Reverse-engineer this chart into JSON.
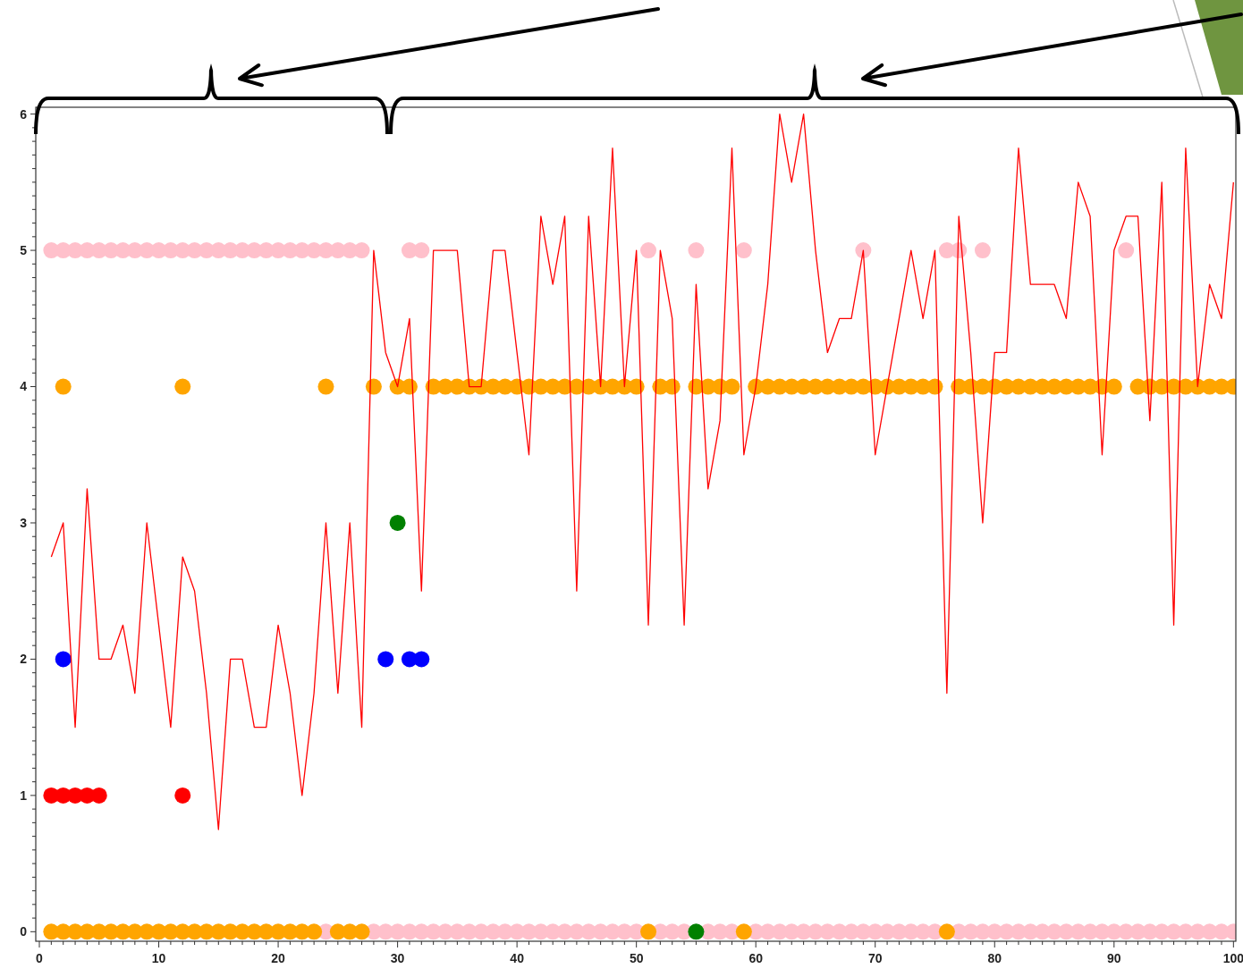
{
  "chart_data": {
    "type": "line",
    "xlim": [
      -0.3,
      100.2
    ],
    "ylim": [
      -0.07,
      6.05
    ],
    "xticks": [
      0,
      {
        "value": 1,
        "label": null
      },
      {
        "value": 2,
        "label": null
      },
      {
        "value": 3,
        "label": null
      },
      {
        "value": 4,
        "label": null
      },
      {
        "value": 5,
        "label": null
      },
      {
        "value": 6,
        "label": null
      },
      {
        "value": 7,
        "label": null
      },
      {
        "value": 8,
        "label": null
      },
      {
        "value": 9,
        "label": null
      },
      10,
      {
        "value": 11,
        "label": null
      },
      {
        "value": 12,
        "label": null
      },
      {
        "value": 13,
        "label": null
      },
      {
        "value": 14,
        "label": null
      },
      {
        "value": 15,
        "label": null
      },
      {
        "value": 16,
        "label": null
      },
      {
        "value": 17,
        "label": null
      },
      {
        "value": 18,
        "label": null
      },
      {
        "value": 19,
        "label": null
      },
      20,
      {
        "value": 21,
        "label": null
      },
      {
        "value": 22,
        "label": null
      },
      {
        "value": 23,
        "label": null
      },
      {
        "value": 24,
        "label": null
      },
      {
        "value": 25,
        "label": null
      },
      {
        "value": 26,
        "label": null
      },
      {
        "value": 27,
        "label": null
      },
      {
        "value": 28,
        "label": null
      },
      {
        "value": 29,
        "label": null
      },
      30,
      {
        "value": 31,
        "label": null
      },
      {
        "value": 32,
        "label": null
      },
      {
        "value": 33,
        "label": null
      },
      {
        "value": 34,
        "label": null
      },
      {
        "value": 35,
        "label": null
      },
      {
        "value": 36,
        "label": null
      },
      {
        "value": 37,
        "label": null
      },
      {
        "value": 38,
        "label": null
      },
      {
        "value": 39,
        "label": null
      },
      40,
      {
        "value": 41,
        "label": null
      },
      {
        "value": 42,
        "label": null
      },
      {
        "value": 43,
        "label": null
      },
      {
        "value": 44,
        "label": null
      },
      {
        "value": 45,
        "label": null
      },
      {
        "value": 46,
        "label": null
      },
      {
        "value": 47,
        "label": null
      },
      {
        "value": 48,
        "label": null
      },
      {
        "value": 49,
        "label": null
      },
      50,
      {
        "value": 51,
        "label": null
      },
      {
        "value": 52,
        "label": null
      },
      {
        "value": 53,
        "label": null
      },
      {
        "value": 54,
        "label": null
      },
      {
        "value": 55,
        "label": null
      },
      {
        "value": 56,
        "label": null
      },
      {
        "value": 57,
        "label": null
      },
      {
        "value": 58,
        "label": null
      },
      {
        "value": 59,
        "label": null
      },
      60,
      {
        "value": 61,
        "label": null
      },
      {
        "value": 62,
        "label": null
      },
      {
        "value": 63,
        "label": null
      },
      {
        "value": 64,
        "label": null
      },
      {
        "value": 65,
        "label": null
      },
      {
        "value": 66,
        "label": null
      },
      {
        "value": 67,
        "label": null
      },
      {
        "value": 68,
        "label": null
      },
      {
        "value": 69,
        "label": null
      },
      70,
      {
        "value": 71,
        "label": null
      },
      {
        "value": 72,
        "label": null
      },
      {
        "value": 73,
        "label": null
      },
      {
        "value": 74,
        "label": null
      },
      {
        "value": 75,
        "label": null
      },
      {
        "value": 76,
        "label": null
      },
      {
        "value": 77,
        "label": null
      },
      {
        "value": 78,
        "label": null
      },
      {
        "value": 79,
        "label": null
      },
      80,
      {
        "value": 81,
        "label": null
      },
      {
        "value": 82,
        "label": null
      },
      {
        "value": 83,
        "label": null
      },
      {
        "value": 84,
        "label": null
      },
      {
        "value": 85,
        "label": null
      },
      {
        "value": 86,
        "label": null
      },
      {
        "value": 87,
        "label": null
      },
      {
        "value": 88,
        "label": null
      },
      {
        "value": 89,
        "label": null
      },
      90,
      {
        "value": 91,
        "label": null
      },
      {
        "value": 92,
        "label": null
      },
      {
        "value": 93,
        "label": null
      },
      {
        "value": 94,
        "label": null
      },
      {
        "value": 95,
        "label": null
      },
      {
        "value": 96,
        "label": null
      },
      {
        "value": 97,
        "label": null
      },
      {
        "value": 98,
        "label": null
      },
      {
        "value": 99,
        "label": null
      },
      100
    ],
    "yticks": [
      0,
      {
        "value": 0.1,
        "label": null
      },
      {
        "value": 0.2,
        "label": null
      },
      {
        "value": 0.3,
        "label": null
      },
      {
        "value": 0.4,
        "label": null
      },
      {
        "value": 0.5,
        "label": null
      },
      {
        "value": 0.6,
        "label": null
      },
      {
        "value": 0.7,
        "label": null
      },
      {
        "value": 0.8,
        "label": null
      },
      {
        "value": 0.9,
        "label": null
      },
      1,
      {
        "value": 1.1,
        "label": null
      },
      {
        "value": 1.2,
        "label": null
      },
      {
        "value": 1.3,
        "label": null
      },
      {
        "value": 1.4,
        "label": null
      },
      {
        "value": 1.5,
        "label": null
      },
      {
        "value": 1.6,
        "label": null
      },
      {
        "value": 1.7,
        "label": null
      },
      {
        "value": 1.8,
        "label": null
      },
      {
        "value": 1.9,
        "label": null
      },
      2,
      {
        "value": 2.1,
        "label": null
      },
      {
        "value": 2.2,
        "label": null
      },
      {
        "value": 2.3,
        "label": null
      },
      {
        "value": 2.4,
        "label": null
      },
      {
        "value": 2.5,
        "label": null
      },
      {
        "value": 2.6,
        "label": null
      },
      {
        "value": 2.7,
        "label": null
      },
      {
        "value": 2.8,
        "label": null
      },
      {
        "value": 2.9,
        "label": null
      },
      3,
      {
        "value": 3.1,
        "label": null
      },
      {
        "value": 3.2,
        "label": null
      },
      {
        "value": 3.3,
        "label": null
      },
      {
        "value": 3.4,
        "label": null
      },
      {
        "value": 3.5,
        "label": null
      },
      {
        "value": 3.6,
        "label": null
      },
      {
        "value": 3.7,
        "label": null
      },
      {
        "value": 3.8,
        "label": null
      },
      {
        "value": 3.9,
        "label": null
      },
      4,
      {
        "value": 4.1,
        "label": null
      },
      {
        "value": 4.2,
        "label": null
      },
      {
        "value": 4.3,
        "label": null
      },
      {
        "value": 4.4,
        "label": null
      },
      {
        "value": 4.5,
        "label": null
      },
      {
        "value": 4.6,
        "label": null
      },
      {
        "value": 4.7,
        "label": null
      },
      {
        "value": 4.8,
        "label": null
      },
      {
        "value": 4.9,
        "label": null
      },
      5,
      {
        "value": 5.1,
        "label": null
      },
      {
        "value": 5.2,
        "label": null
      },
      {
        "value": 5.3,
        "label": null
      },
      {
        "value": 5.4,
        "label": null
      },
      {
        "value": 5.5,
        "label": null
      },
      {
        "value": 5.6,
        "label": null
      },
      {
        "value": 5.7,
        "label": null
      },
      {
        "value": 5.8,
        "label": null
      },
      {
        "value": 5.9,
        "label": null
      },
      6
    ],
    "series": [
      {
        "type": "scatter",
        "marker": "circle",
        "color": "#ffc0cb",
        "x": [
          1,
          2,
          3,
          4,
          5,
          6,
          7,
          8,
          9,
          10,
          11,
          12,
          13,
          14,
          15,
          16,
          17,
          18,
          19,
          20,
          21,
          22,
          23,
          24,
          25,
          26,
          27,
          31,
          32,
          51,
          55,
          59,
          69,
          76,
          77,
          79,
          91
        ],
        "values": [
          5,
          5,
          5,
          5,
          5,
          5,
          5,
          5,
          5,
          5,
          5,
          5,
          5,
          5,
          5,
          5,
          5,
          5,
          5,
          5,
          5,
          5,
          5,
          5,
          5,
          5,
          5,
          5,
          5,
          5,
          5,
          5,
          5,
          5,
          5,
          5,
          5
        ]
      },
      {
        "type": "scatter",
        "marker": "circle",
        "color": "#ffc0cb",
        "x": [
          24,
          28,
          29,
          30,
          31,
          32,
          33,
          34,
          35,
          36,
          37,
          38,
          39,
          40,
          41,
          42,
          43,
          44,
          45,
          46,
          47,
          48,
          49,
          50,
          52,
          53,
          54,
          56,
          57,
          58,
          60,
          61,
          62,
          63,
          64,
          65,
          66,
          67,
          68,
          69,
          70,
          71,
          72,
          73,
          74,
          75,
          77,
          78,
          79,
          80,
          81,
          82,
          83,
          84,
          85,
          86,
          87,
          88,
          89,
          90,
          91,
          92,
          93,
          94,
          95,
          96,
          97,
          98,
          99,
          100
        ],
        "values": [
          0,
          0,
          0,
          0,
          0,
          0,
          0,
          0,
          0,
          0,
          0,
          0,
          0,
          0,
          0,
          0,
          0,
          0,
          0,
          0,
          0,
          0,
          0,
          0,
          0,
          0,
          0,
          0,
          0,
          0,
          0,
          0,
          0,
          0,
          0,
          0,
          0,
          0,
          0,
          0,
          0,
          0,
          0,
          0,
          0,
          0,
          0,
          0,
          0,
          0,
          0,
          0,
          0,
          0,
          0,
          0,
          0,
          0,
          0,
          0,
          0,
          0,
          0,
          0,
          0,
          0,
          0,
          0,
          0,
          0
        ]
      },
      {
        "type": "scatter",
        "marker": "circle",
        "color": "#ffa500",
        "x": [
          2,
          12,
          24,
          28,
          30,
          31,
          33,
          34,
          35,
          36,
          37,
          38,
          39,
          40,
          41,
          42,
          43,
          44,
          45,
          46,
          47,
          48,
          49,
          50,
          52,
          53,
          55,
          56,
          57,
          58,
          60,
          61,
          62,
          63,
          64,
          65,
          66,
          67,
          68,
          69,
          70,
          71,
          72,
          73,
          74,
          75,
          77,
          78,
          79,
          80,
          81,
          82,
          83,
          84,
          85,
          86,
          87,
          88,
          89,
          90,
          92,
          93,
          94,
          95,
          96,
          97,
          98,
          99,
          100
        ],
        "values": [
          4,
          4,
          4,
          4,
          4,
          4,
          4,
          4,
          4,
          4,
          4,
          4,
          4,
          4,
          4,
          4,
          4,
          4,
          4,
          4,
          4,
          4,
          4,
          4,
          4,
          4,
          4,
          4,
          4,
          4,
          4,
          4,
          4,
          4,
          4,
          4,
          4,
          4,
          4,
          4,
          4,
          4,
          4,
          4,
          4,
          4,
          4,
          4,
          4,
          4,
          4,
          4,
          4,
          4,
          4,
          4,
          4,
          4,
          4,
          4,
          4,
          4,
          4,
          4,
          4,
          4,
          4,
          4,
          4
        ]
      },
      {
        "type": "scatter",
        "marker": "circle",
        "color": "#ffa500",
        "x": [
          1,
          2,
          3,
          4,
          5,
          6,
          7,
          8,
          9,
          10,
          11,
          12,
          13,
          14,
          15,
          16,
          17,
          18,
          19,
          20,
          21,
          22,
          23,
          25,
          26,
          27,
          51,
          59,
          76
        ],
        "values": [
          0,
          0,
          0,
          0,
          0,
          0,
          0,
          0,
          0,
          0,
          0,
          0,
          0,
          0,
          0,
          0,
          0,
          0,
          0,
          0,
          0,
          0,
          0,
          0,
          0,
          0,
          0,
          0,
          0
        ]
      },
      {
        "type": "scatter",
        "marker": "circle",
        "color": "#008000",
        "x": [
          30,
          55
        ],
        "values": [
          3,
          0
        ]
      },
      {
        "type": "scatter",
        "marker": "circle",
        "color": "#0000ff",
        "x": [
          2,
          29,
          31,
          32
        ],
        "values": [
          2,
          2,
          2,
          2
        ]
      },
      {
        "type": "scatter",
        "marker": "circle",
        "color": "#ff0000",
        "x": [
          1,
          2,
          3,
          4,
          5,
          12
        ],
        "values": [
          1,
          1,
          1,
          1,
          1,
          1
        ]
      },
      {
        "type": "line",
        "color": "#ff0000",
        "x": [
          1,
          2,
          3,
          4,
          5,
          6,
          7,
          8,
          9,
          10,
          11,
          12,
          13,
          14,
          15,
          16,
          17,
          18,
          19,
          20,
          21,
          22,
          23,
          24,
          25,
          26,
          27,
          28,
          29,
          30,
          31,
          32,
          33,
          34,
          35,
          36,
          37,
          38,
          39,
          40,
          41,
          42,
          43,
          44,
          45,
          46,
          47,
          48,
          49,
          50,
          51,
          52,
          53,
          54,
          55,
          56,
          57,
          58,
          59,
          60,
          61,
          62,
          63,
          64,
          65,
          66,
          67,
          68,
          69,
          70,
          71,
          72,
          73,
          74,
          75,
          76,
          77,
          78,
          79,
          80,
          81,
          82,
          83,
          84,
          85,
          86,
          87,
          88,
          89,
          90,
          91,
          92,
          93,
          94,
          95,
          96,
          97,
          98,
          99,
          100
        ],
        "values": [
          2.75,
          3.0,
          1.5,
          3.25,
          2.0,
          2.0,
          2.25,
          1.75,
          3.0,
          2.25,
          1.5,
          2.75,
          2.5,
          1.75,
          0.75,
          2.0,
          2.0,
          1.5,
          1.5,
          2.25,
          1.75,
          1.0,
          1.75,
          3.0,
          1.75,
          3.0,
          1.5,
          5.0,
          4.25,
          4.0,
          4.5,
          2.5,
          5.0,
          5.0,
          5.0,
          4.0,
          4.0,
          5.0,
          5.0,
          4.25,
          3.5,
          5.25,
          4.75,
          5.25,
          2.5,
          5.25,
          4.0,
          5.75,
          4.0,
          5.0,
          2.25,
          5.0,
          4.5,
          2.25,
          4.75,
          3.25,
          3.75,
          5.75,
          3.5,
          4.0,
          4.75,
          6.0,
          5.5,
          6.0,
          5.0,
          4.25,
          4.5,
          4.5,
          5.0,
          3.5,
          4.0,
          4.5,
          5.0,
          4.5,
          5.0,
          1.75,
          5.25,
          4.25,
          3.0,
          4.25,
          4.25,
          5.75,
          4.75,
          4.75,
          4.75,
          4.5,
          5.5,
          5.25,
          3.5,
          5.0,
          5.25,
          5.25,
          3.75,
          5.5,
          2.25,
          5.75,
          4.0,
          4.75,
          4.5,
          5.5
        ]
      }
    ]
  }
}
